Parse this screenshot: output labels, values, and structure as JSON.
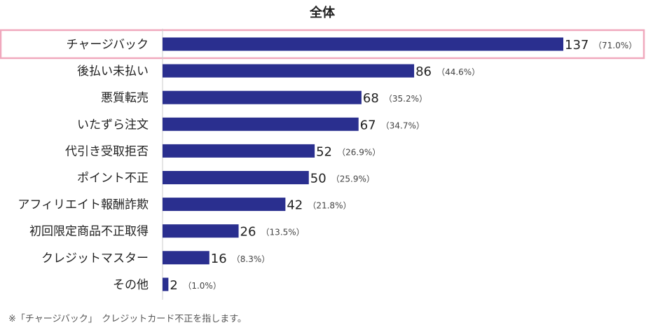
{
  "chart_data": {
    "type": "bar",
    "orientation": "horizontal",
    "title": "全体",
    "categories": [
      "チャージバック",
      "後払い未払い",
      "悪質転売",
      "いたずら注文",
      "代引き受取拒否",
      "ポイント不正",
      "アフィリエイト報酬詐欺",
      "初回限定商品不正取得",
      "クレジットマスター",
      "その他"
    ],
    "values": [
      137,
      86,
      68,
      67,
      52,
      50,
      42,
      26,
      16,
      2
    ],
    "percent_labels": [
      "（71.0%）",
      "（44.6%）",
      "（35.2%）",
      "（34.7%）",
      "（26.9%）",
      "（25.9%）",
      "（21.8%）",
      "（13.5%）",
      "（8.3%）",
      "（1.0%）"
    ],
    "highlighted_category": "チャージバック",
    "colors": {
      "bar": "#2a2f8f",
      "highlight_border": "#f0a8bd",
      "axis": "#cccccc"
    },
    "grid": false,
    "legend": "none"
  },
  "footnote": "※「チャージバック」　クレジットカード不正を指します。"
}
